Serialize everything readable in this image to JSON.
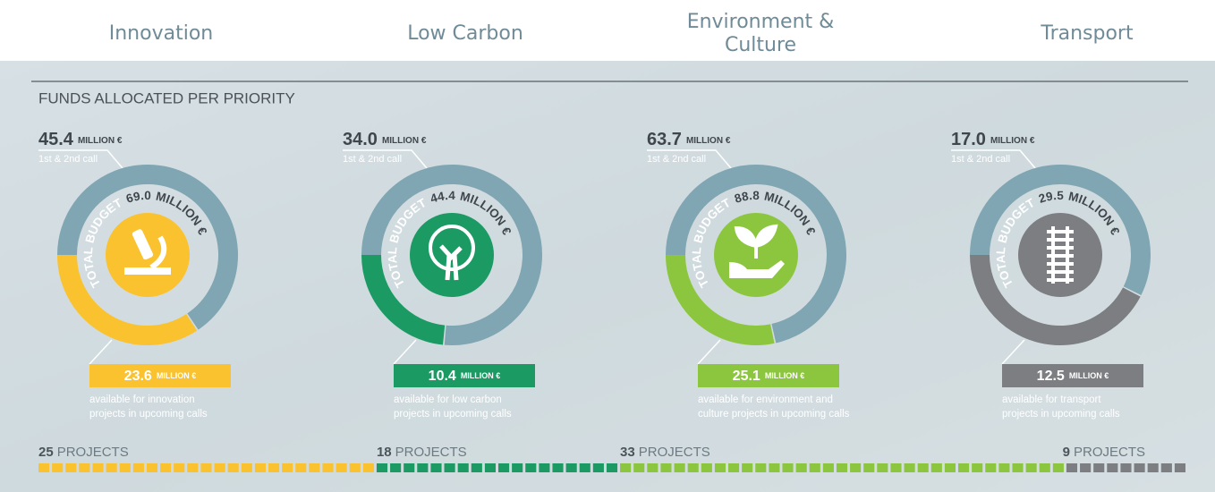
{
  "header": {
    "section_title": "FUNDS ALLOCATED PER PRIORITY"
  },
  "priorities": [
    {
      "tab": "Innovation",
      "color": "#f9c22e",
      "allocated": {
        "value": 45.4,
        "label": "45.4"
      },
      "unit": "MILLION €",
      "call": "1st & 2nd call",
      "total_label": "TOTAL BUDGET",
      "total": {
        "value": 69.0,
        "label": "69.0"
      },
      "available": 23.6,
      "description": [
        "available for innovation",
        "projects in upcoming calls"
      ],
      "projects": 25,
      "projects_label": "PROJECTS"
    },
    {
      "tab": "Low Carbon",
      "color": "#1b9a63",
      "allocated": {
        "value": 34.0,
        "label": "34.0"
      },
      "unit": "MILLION €",
      "call": "1st & 2nd call",
      "total_label": "TOTAL BUDGET",
      "total": {
        "value": 44.4,
        "label": "44.4"
      },
      "available": 10.4,
      "description": [
        "available for low carbon",
        "projects in upcoming calls"
      ],
      "projects": 18,
      "projects_label": "PROJECTS"
    },
    {
      "tab": "Environment & Culture",
      "color": "#8cc63f",
      "allocated": {
        "value": 63.7,
        "label": "63.7"
      },
      "unit": "MILLION €",
      "call": "1st & 2nd call",
      "total_label": "TOTAL BUDGET",
      "total": {
        "value": 88.8,
        "label": "88.8"
      },
      "available": 25.1,
      "description": [
        "available for environment and",
        "culture projects in upcoming calls"
      ],
      "projects": 33,
      "projects_label": "PROJECTS"
    },
    {
      "tab": "Transport",
      "color": "#7c7e81",
      "allocated": {
        "value": 17.0,
        "label": "17.0"
      },
      "unit": "MILLION €",
      "call": "1st & 2nd call",
      "total_label": "TOTAL BUDGET",
      "total": {
        "value": 29.5,
        "label": "29.5"
      },
      "available": 12.5,
      "description": [
        "available for transport",
        "projects in upcoming calls"
      ],
      "projects": 9,
      "projects_label": "PROJECTS"
    }
  ]
}
